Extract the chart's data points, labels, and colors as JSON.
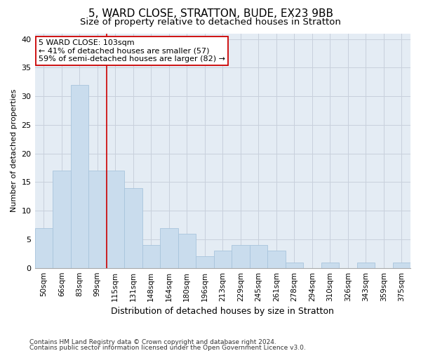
{
  "title1": "5, WARD CLOSE, STRATTON, BUDE, EX23 9BB",
  "title2": "Size of property relative to detached houses in Stratton",
  "xlabel": "Distribution of detached houses by size in Stratton",
  "ylabel": "Number of detached properties",
  "categories": [
    "50sqm",
    "66sqm",
    "83sqm",
    "99sqm",
    "115sqm",
    "131sqm",
    "148sqm",
    "164sqm",
    "180sqm",
    "196sqm",
    "213sqm",
    "229sqm",
    "245sqm",
    "261sqm",
    "278sqm",
    "294sqm",
    "310sqm",
    "326sqm",
    "343sqm",
    "359sqm",
    "375sqm"
  ],
  "values": [
    7,
    17,
    32,
    17,
    17,
    14,
    4,
    7,
    6,
    2,
    3,
    4,
    4,
    3,
    1,
    0,
    1,
    0,
    1,
    0,
    1
  ],
  "bar_color": "#c9dced",
  "bar_edgecolor": "#a8c4dc",
  "vline_index": 3.5,
  "vline_color": "#cc0000",
  "annotation_line1": "5 WARD CLOSE: 103sqm",
  "annotation_line2": "← 41% of detached houses are smaller (57)",
  "annotation_line3": "59% of semi-detached houses are larger (82) →",
  "annotation_box_color": "#cc0000",
  "ylim": [
    0,
    41
  ],
  "yticks": [
    0,
    5,
    10,
    15,
    20,
    25,
    30,
    35,
    40
  ],
  "grid_color": "#c8d0dc",
  "background_color": "#e4ecf4",
  "footer_line1": "Contains HM Land Registry data © Crown copyright and database right 2024.",
  "footer_line2": "Contains public sector information licensed under the Open Government Licence v3.0.",
  "title_fontsize": 11,
  "subtitle_fontsize": 9.5,
  "xlabel_fontsize": 9,
  "ylabel_fontsize": 8,
  "tick_fontsize": 7.5,
  "annotation_fontsize": 8,
  "footer_fontsize": 6.5
}
